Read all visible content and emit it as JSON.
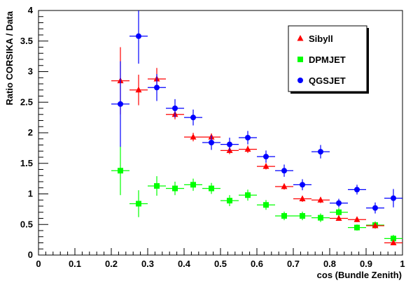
{
  "chart_data": {
    "type": "scatter",
    "title": "",
    "xlabel": "cos (Bundle Zenith)",
    "ylabel": "Ratio CORSIKA / Data",
    "xlim": [
      0,
      1
    ],
    "ylim": [
      0,
      4
    ],
    "x_ticks": [
      "0",
      "0.1",
      "0.2",
      "0.3",
      "0.4",
      "0.5",
      "0.6",
      "0.7",
      "0.8",
      "0.9",
      "1"
    ],
    "y_ticks": [
      "0",
      "0.5",
      "1",
      "1.5",
      "2",
      "2.5",
      "3",
      "3.5",
      "4"
    ],
    "grid": false,
    "legend_position": "top-right",
    "series": [
      {
        "name": "Sibyll",
        "marker": "triangle",
        "color": "#ff0000",
        "x": [
          0.225,
          0.275,
          0.325,
          0.375,
          0.425,
          0.475,
          0.525,
          0.575,
          0.625,
          0.675,
          0.725,
          0.775,
          0.825,
          0.875,
          0.925,
          0.975
        ],
        "y": [
          2.85,
          2.7,
          2.88,
          2.3,
          1.93,
          1.93,
          1.71,
          1.73,
          1.45,
          1.12,
          0.92,
          0.9,
          0.6,
          0.58,
          0.48,
          0.2
        ],
        "yerr": [
          0.55,
          0.25,
          0.18,
          0.08,
          0.07,
          0.06,
          0.06,
          0.06,
          0.05,
          0.05,
          0.05,
          0.05,
          0.04,
          0.04,
          0.04,
          0.03
        ]
      },
      {
        "name": "DPMJET",
        "marker": "square",
        "color": "#00ff00",
        "x": [
          0.225,
          0.275,
          0.325,
          0.375,
          0.425,
          0.475,
          0.525,
          0.575,
          0.625,
          0.675,
          0.725,
          0.775,
          0.825,
          0.875,
          0.925,
          0.975
        ],
        "y": [
          1.38,
          0.84,
          1.13,
          1.09,
          1.15,
          1.09,
          0.89,
          0.98,
          0.82,
          0.64,
          0.64,
          0.61,
          0.7,
          0.45,
          0.49,
          0.27
        ],
        "yerr": [
          0.4,
          0.22,
          0.16,
          0.11,
          0.1,
          0.09,
          0.09,
          0.09,
          0.08,
          0.07,
          0.07,
          0.07,
          0.07,
          0.05,
          0.06,
          0.06
        ]
      },
      {
        "name": "QGSJET",
        "marker": "circle",
        "color": "#0000ff",
        "x": [
          0.225,
          0.275,
          0.325,
          0.375,
          0.425,
          0.475,
          0.525,
          0.575,
          0.625,
          0.675,
          0.725,
          0.775,
          0.825,
          0.875,
          0.925,
          0.975
        ],
        "y": [
          2.47,
          3.58,
          2.74,
          2.4,
          2.25,
          1.84,
          1.81,
          1.92,
          1.61,
          1.38,
          1.15,
          1.69,
          0.85,
          1.07,
          0.77,
          0.93
        ],
        "yerr": [
          0.7,
          0.45,
          0.22,
          0.15,
          0.13,
          0.12,
          0.11,
          0.11,
          0.1,
          0.1,
          0.09,
          0.11,
          0.07,
          0.08,
          0.09,
          0.15
        ]
      }
    ]
  }
}
